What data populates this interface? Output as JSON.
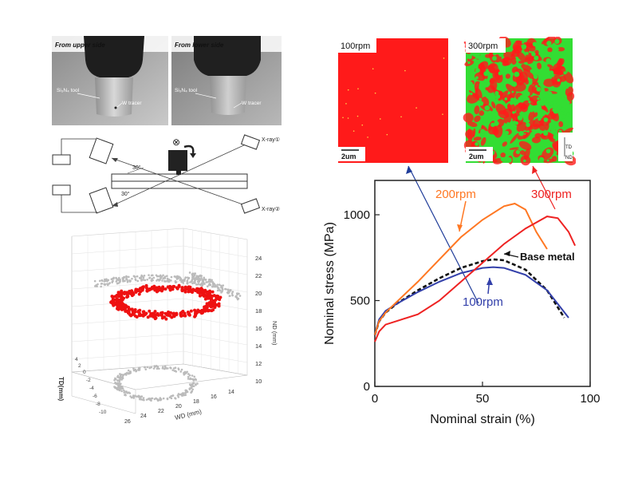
{
  "xray_images": {
    "left_label": "From upper side",
    "right_label": "From lower side",
    "tool_label": "Si₃N₄ tool",
    "tracer_label": "W tracer"
  },
  "setup_diagram": {
    "source_top": "X-ray①",
    "source_bottom": "X-ray②",
    "angle_top": "30°",
    "angle_bottom": "30°",
    "rotation_symbol": "⊗"
  },
  "scatter3d": {
    "nd_ticks": [
      "24",
      "22",
      "20",
      "18",
      "16",
      "14",
      "12",
      "10"
    ],
    "wd_ticks": [
      "26",
      "24",
      "22",
      "20",
      "18",
      "16",
      "14"
    ],
    "td_ticks": [
      "4",
      "2",
      "0",
      "-2",
      "-4",
      "-6",
      "-8",
      "-10"
    ],
    "nd_label": "ND (mm)",
    "wd_label": "WD (mm)",
    "td_label": "TD(mm)",
    "colors": {
      "ring": "#ee1111",
      "shadow": "#bbbbbb"
    }
  },
  "ebsd_maps": {
    "left_label": "100rpm",
    "right_label": "300rpm",
    "scale_left": "2um",
    "scale_right": "2um",
    "axis_td": "TD",
    "axis_nd": "ND",
    "colors": {
      "red": "#ff1a1a",
      "green": "#33dd33"
    }
  },
  "chart_data": {
    "type": "line",
    "xlabel": "Nominal strain (%)",
    "ylabel": "Nominal stress (MPa)",
    "xlim": [
      0,
      100
    ],
    "ylim": [
      0,
      1200
    ],
    "xticks": [
      "0",
      "50",
      "100"
    ],
    "yticks": [
      "0",
      "500",
      "1000"
    ],
    "series": [
      {
        "name": "Base metal",
        "color": "#111111",
        "dashed": true,
        "x": [
          0,
          2,
          5,
          10,
          20,
          30,
          40,
          50,
          55,
          60,
          70,
          80,
          88
        ],
        "y": [
          300,
          380,
          430,
          480,
          560,
          630,
          690,
          730,
          740,
          735,
          680,
          560,
          400
        ]
      },
      {
        "name": "100rpm",
        "color": "#3340aa",
        "dashed": false,
        "x": [
          0,
          2,
          5,
          10,
          20,
          30,
          40,
          50,
          55,
          60,
          70,
          80,
          90
        ],
        "y": [
          300,
          390,
          440,
          480,
          550,
          610,
          660,
          690,
          695,
          690,
          650,
          560,
          400
        ]
      },
      {
        "name": "200rpm",
        "color": "#ff7722",
        "dashed": false,
        "x": [
          0,
          2,
          5,
          10,
          20,
          30,
          40,
          50,
          60,
          65,
          70,
          75,
          80
        ],
        "y": [
          300,
          380,
          430,
          490,
          610,
          740,
          870,
          970,
          1050,
          1065,
          1030,
          900,
          800
        ]
      },
      {
        "name": "300rpm",
        "color": "#ee2222",
        "dashed": false,
        "x": [
          0,
          2,
          5,
          10,
          20,
          30,
          40,
          50,
          60,
          70,
          80,
          85,
          90,
          93
        ],
        "y": [
          260,
          320,
          360,
          380,
          420,
          500,
          610,
          720,
          830,
          920,
          990,
          980,
          900,
          820
        ]
      }
    ]
  }
}
